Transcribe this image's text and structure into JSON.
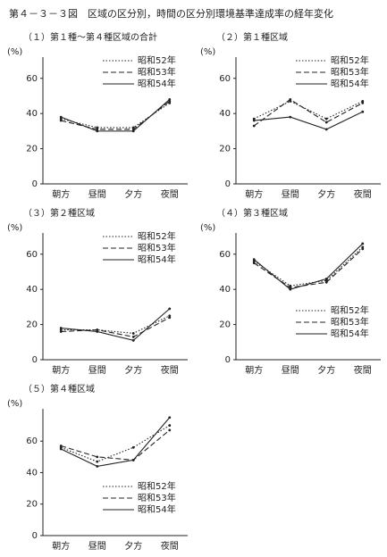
{
  "title": "第４－３－３図　区域の区分別，時間の区分別環境基準達成率の経年変化",
  "chart_data": [
    {
      "type": "line",
      "title": "（１）第１種～第４種区域の合計",
      "ylabel": "(%)",
      "categories": [
        "朝方",
        "昼間",
        "夕方",
        "夜間"
      ],
      "ylim": [
        0,
        68
      ],
      "yticks": [
        0,
        20,
        40,
        60
      ],
      "legend": "upper right",
      "series": [
        {
          "name": "昭和52年",
          "color": "#222",
          "dash": "dotted",
          "values": [
            37,
            32,
            32,
            46
          ]
        },
        {
          "name": "昭和53年",
          "color": "#222",
          "dash": "dashed",
          "values": [
            36,
            31,
            31,
            47
          ]
        },
        {
          "name": "昭和54年",
          "color": "#222",
          "dash": "solid",
          "values": [
            38,
            30,
            30,
            48
          ]
        }
      ]
    },
    {
      "type": "line",
      "title": "（２）第１種区域",
      "ylabel": "(%)",
      "categories": [
        "朝方",
        "昼間",
        "夕方",
        "夜間"
      ],
      "ylim": [
        0,
        68
      ],
      "yticks": [
        0,
        20,
        40,
        60
      ],
      "legend": "upper right",
      "series": [
        {
          "name": "昭和52年",
          "color": "#222",
          "dash": "dotted",
          "values": [
            37,
            47,
            37,
            47
          ]
        },
        {
          "name": "昭和53年",
          "color": "#222",
          "dash": "dashed",
          "values": [
            33,
            48,
            35,
            46
          ]
        },
        {
          "name": "昭和54年",
          "color": "#222",
          "dash": "solid",
          "values": [
            36,
            38,
            31,
            41
          ]
        }
      ]
    },
    {
      "type": "line",
      "title": "（３）第２種区域",
      "ylabel": "(%)",
      "categories": [
        "朝方",
        "昼間",
        "夕方",
        "夜間"
      ],
      "ylim": [
        0,
        68
      ],
      "yticks": [
        0,
        20,
        40,
        60
      ],
      "legend": "upper right",
      "series": [
        {
          "name": "昭和52年",
          "color": "#222",
          "dash": "dotted",
          "values": [
            17,
            17,
            15,
            25
          ]
        },
        {
          "name": "昭和53年",
          "color": "#222",
          "dash": "dashed",
          "values": [
            16,
            17,
            13,
            24
          ]
        },
        {
          "name": "昭和54年",
          "color": "#222",
          "dash": "solid",
          "values": [
            18,
            16,
            11,
            29
          ]
        }
      ]
    },
    {
      "type": "line",
      "title": "（４）第３種区域",
      "ylabel": "(%)",
      "categories": [
        "朝方",
        "昼間",
        "夕方",
        "夜間"
      ],
      "ylim": [
        0,
        68
      ],
      "yticks": [
        0,
        20,
        40,
        60
      ],
      "legend": "lower right",
      "series": [
        {
          "name": "昭和52年",
          "color": "#222",
          "dash": "dotted",
          "values": [
            56,
            42,
            45,
            64
          ]
        },
        {
          "name": "昭和53年",
          "color": "#222",
          "dash": "dashed",
          "values": [
            55,
            41,
            44,
            63
          ]
        },
        {
          "name": "昭和54年",
          "color": "#222",
          "dash": "solid",
          "values": [
            57,
            40,
            46,
            66
          ]
        }
      ]
    },
    {
      "type": "line",
      "title": "（５）第４種区域",
      "ylabel": "(%)",
      "categories": [
        "朝方",
        "昼間",
        "夕方",
        "夜間"
      ],
      "ylim": [
        0,
        76
      ],
      "yticks": [
        0,
        20,
        40,
        60
      ],
      "legend": "lower right",
      "series": [
        {
          "name": "昭和52年",
          "color": "#222",
          "dash": "dotted",
          "values": [
            56,
            47,
            56,
            70
          ]
        },
        {
          "name": "昭和53年",
          "color": "#222",
          "dash": "dashed",
          "values": [
            57,
            50,
            48,
            67
          ]
        },
        {
          "name": "昭和54年",
          "color": "#222",
          "dash": "solid",
          "values": [
            55,
            44,
            48,
            75
          ]
        }
      ]
    }
  ]
}
